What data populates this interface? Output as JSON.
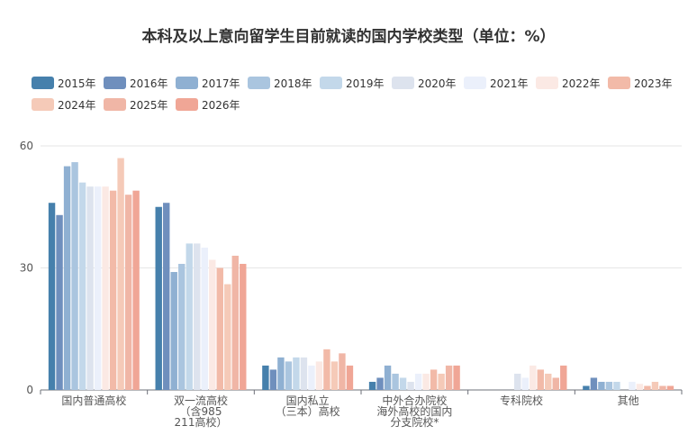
{
  "chart_data": {
    "type": "bar",
    "title": "本科及以上意向留学生目前就读的国内学校类型（单位：%）",
    "ylim": [
      0,
      60
    ],
    "yticks": [
      0,
      30,
      60
    ],
    "grid": true,
    "legend_position": "top",
    "categories": [
      [
        "国内普通高校"
      ],
      [
        "双一流高校",
        "（含985",
        "211高校）"
      ],
      [
        "国内私立",
        "（三本）高校"
      ],
      [
        "中外合办院校",
        "海外高校的国内",
        "分支院校*"
      ],
      [
        "专科院校"
      ],
      [
        "其他"
      ]
    ],
    "series": [
      {
        "name": "2015年",
        "color": "#4680ac",
        "values": [
          46,
          45,
          6,
          2,
          null,
          1
        ]
      },
      {
        "name": "2016年",
        "color": "#6f8fbd",
        "values": [
          43,
          46,
          5,
          3,
          null,
          3
        ]
      },
      {
        "name": "2017年",
        "color": "#8fb0d2",
        "values": [
          55,
          29,
          8,
          6,
          null,
          2
        ]
      },
      {
        "name": "2018年",
        "color": "#aac5df",
        "values": [
          56,
          31,
          7,
          4,
          null,
          2
        ]
      },
      {
        "name": "2019年",
        "color": "#c3d8ea",
        "values": [
          51,
          36,
          8,
          3,
          null,
          2
        ]
      },
      {
        "name": "2020年",
        "color": "#dde3ee",
        "values": [
          50,
          36,
          8,
          2,
          4,
          null
        ]
      },
      {
        "name": "2021年",
        "color": "#ebf0fb",
        "values": [
          50,
          35,
          6,
          4,
          3,
          2
        ]
      },
      {
        "name": "2022年",
        "color": "#fbe9e4",
        "values": [
          50,
          32,
          7,
          4,
          6,
          1.5
        ]
      },
      {
        "name": "2023年",
        "color": "#f2baa8",
        "values": [
          49,
          30,
          10,
          5,
          5,
          1
        ]
      },
      {
        "name": "2024年",
        "color": "#f5cab8",
        "values": [
          57,
          26,
          7,
          4,
          4,
          2
        ]
      },
      {
        "name": "2025年",
        "color": "#f0b6a6",
        "values": [
          48,
          33,
          9,
          6,
          3,
          1
        ]
      },
      {
        "name": "2026年",
        "color": "#f0a696",
        "values": [
          49,
          31,
          6,
          6,
          6,
          1
        ]
      }
    ]
  }
}
